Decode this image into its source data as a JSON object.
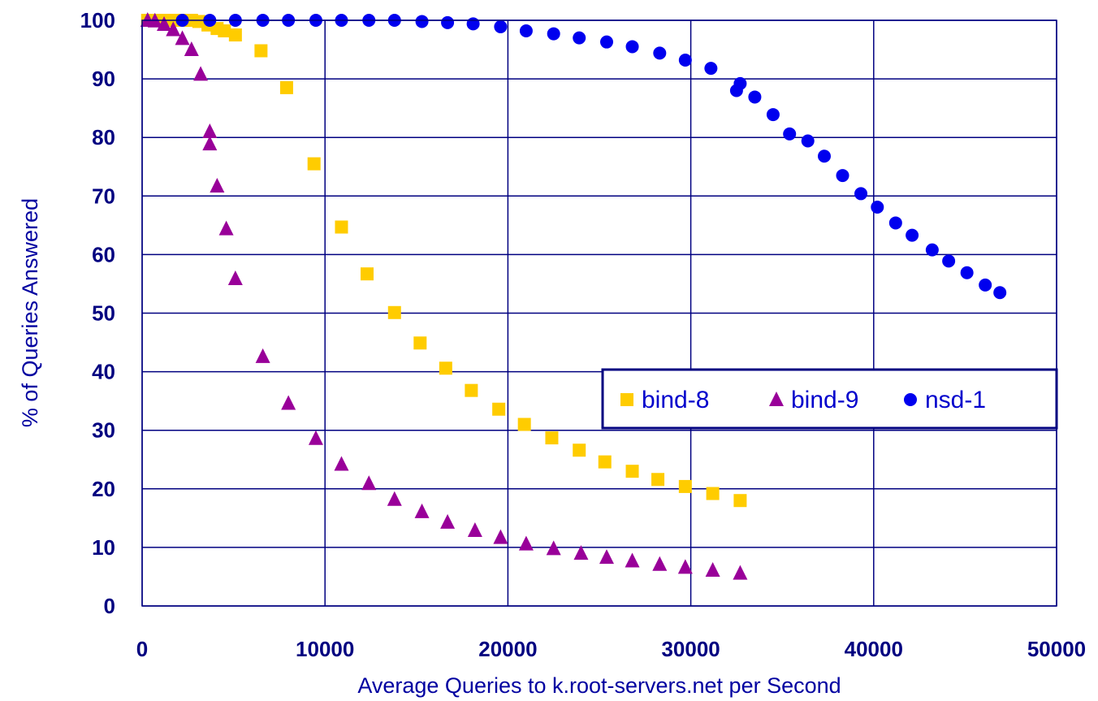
{
  "chart_data": {
    "type": "scatter",
    "title": "",
    "xlabel": "Average Queries to k.root-servers.net per Second",
    "ylabel": "% of Queries Answered",
    "xlim": [
      0,
      50000
    ],
    "ylim": [
      0,
      100
    ],
    "xticks": [
      0,
      10000,
      20000,
      30000,
      40000,
      50000
    ],
    "yticks": [
      0,
      10,
      20,
      30,
      40,
      50,
      60,
      70,
      80,
      90,
      100
    ],
    "grid": true,
    "legend_position": "center-right",
    "series": [
      {
        "name": "bind-8",
        "marker": "square",
        "color": "#ffcc00",
        "points": [
          [
            300,
            100
          ],
          [
            700,
            100
          ],
          [
            1100,
            100
          ],
          [
            1500,
            100
          ],
          [
            1900,
            100
          ],
          [
            2300,
            100
          ],
          [
            2700,
            100
          ],
          [
            3100,
            99.8
          ],
          [
            3600,
            99.2
          ],
          [
            4100,
            98.6
          ],
          [
            4500,
            98.2
          ],
          [
            5100,
            97.5
          ],
          [
            6500,
            94.8
          ],
          [
            7900,
            88.5
          ],
          [
            9400,
            75.5
          ],
          [
            10900,
            64.7
          ],
          [
            12300,
            56.7
          ],
          [
            13800,
            50.1
          ],
          [
            15200,
            44.9
          ],
          [
            16600,
            40.6
          ],
          [
            18000,
            36.8
          ],
          [
            19500,
            33.6
          ],
          [
            20900,
            31.0
          ],
          [
            22400,
            28.7
          ],
          [
            23900,
            26.6
          ],
          [
            25300,
            24.6
          ],
          [
            26800,
            23.0
          ],
          [
            28200,
            21.6
          ],
          [
            29700,
            20.4
          ],
          [
            31200,
            19.2
          ],
          [
            32700,
            18.0
          ]
        ]
      },
      {
        "name": "bind-9",
        "marker": "triangle",
        "color": "#990099",
        "points": [
          [
            300,
            100
          ],
          [
            700,
            99.9
          ],
          [
            1200,
            99.3
          ],
          [
            1700,
            98.4
          ],
          [
            2200,
            96.9
          ],
          [
            2700,
            95.0
          ],
          [
            3200,
            90.8
          ],
          [
            3700,
            81.0
          ],
          [
            3700,
            78.9
          ],
          [
            4100,
            71.7
          ],
          [
            4600,
            64.4
          ],
          [
            5100,
            55.9
          ],
          [
            6600,
            42.6
          ],
          [
            8000,
            34.6
          ],
          [
            9500,
            28.6
          ],
          [
            10900,
            24.2
          ],
          [
            12400,
            20.9
          ],
          [
            13800,
            18.2
          ],
          [
            15300,
            16.1
          ],
          [
            16700,
            14.3
          ],
          [
            18200,
            12.9
          ],
          [
            19600,
            11.7
          ],
          [
            21000,
            10.6
          ],
          [
            22500,
            9.8
          ],
          [
            24000,
            9.0
          ],
          [
            25400,
            8.3
          ],
          [
            26800,
            7.7
          ],
          [
            28300,
            7.1
          ],
          [
            29700,
            6.6
          ],
          [
            31200,
            6.1
          ],
          [
            32700,
            5.6
          ]
        ]
      },
      {
        "name": "nsd-1",
        "marker": "circle",
        "color": "#0000ee",
        "points": [
          [
            2200,
            100
          ],
          [
            3700,
            100
          ],
          [
            5100,
            100
          ],
          [
            6600,
            100
          ],
          [
            8000,
            100
          ],
          [
            9500,
            100
          ],
          [
            10900,
            100
          ],
          [
            12400,
            100
          ],
          [
            13800,
            100
          ],
          [
            15300,
            99.8
          ],
          [
            16700,
            99.6
          ],
          [
            18100,
            99.4
          ],
          [
            19600,
            98.9
          ],
          [
            21000,
            98.2
          ],
          [
            22500,
            97.7
          ],
          [
            23900,
            97.0
          ],
          [
            25400,
            96.3
          ],
          [
            26800,
            95.5
          ],
          [
            28300,
            94.4
          ],
          [
            29700,
            93.2
          ],
          [
            31100,
            91.8
          ],
          [
            32500,
            88.0
          ],
          [
            32700,
            89.2
          ],
          [
            33500,
            86.9
          ],
          [
            34500,
            83.9
          ],
          [
            35400,
            80.6
          ],
          [
            36400,
            79.4
          ],
          [
            37300,
            76.8
          ],
          [
            38300,
            73.5
          ],
          [
            39300,
            70.4
          ],
          [
            40200,
            68.1
          ],
          [
            41200,
            65.4
          ],
          [
            42100,
            63.3
          ],
          [
            43200,
            60.8
          ],
          [
            44100,
            58.9
          ],
          [
            45100,
            56.9
          ],
          [
            46100,
            54.8
          ],
          [
            46900,
            53.5
          ]
        ]
      }
    ]
  }
}
